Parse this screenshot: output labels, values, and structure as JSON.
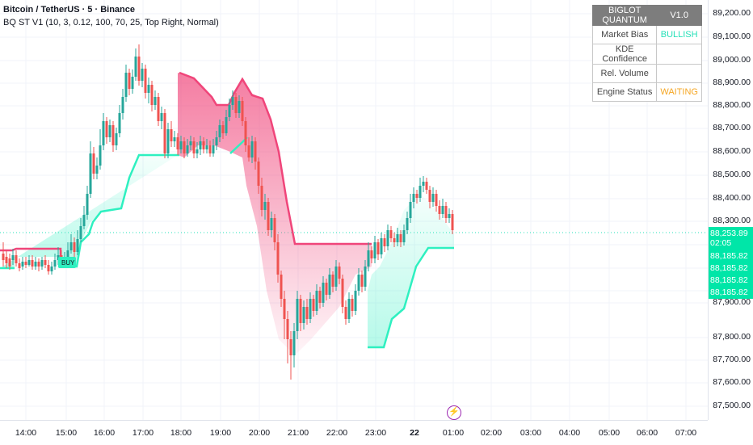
{
  "legend": {
    "symbol_line": "Bitcoin / TetherUS · 5 · Binance",
    "indicator_line": "BQ ST V1 (10, 3, 0.12, 100, 70, 25, Top Right, Normal)"
  },
  "table": {
    "title": "BIGLOT QUANTUM",
    "version": "V1.0",
    "rows": [
      {
        "label": "Market Bias",
        "value": "BULLISH",
        "color": "#26e0b8"
      },
      {
        "label": "KDE Confidence",
        "value": "",
        "color": "#444444"
      },
      {
        "label": "Rel. Volume",
        "value": "",
        "color": "#444444"
      },
      {
        "label": "Engine Status",
        "value": "WAITING",
        "color": "#f5a623"
      }
    ]
  },
  "buy_label": "BUY",
  "price_scale": {
    "ticks": [
      "89,200.00",
      "89,100.00",
      "89,000.00",
      "88,900.00",
      "88,800.00",
      "88,700.00",
      "88,600.00",
      "88,500.00",
      "88,400.00",
      "88,300.00",
      "87,900.00",
      "87,800.00",
      "87,700.00",
      "87,600.00",
      "87,500.00"
    ],
    "tags": [
      {
        "text": "88,253.89",
        "color": "#00e6a8"
      },
      {
        "text": "02:05",
        "color": "#00e6a8"
      },
      {
        "text": "88,185.82",
        "color": "#00e6a8"
      },
      {
        "text": "88,185.82",
        "color": "#00e6a8"
      },
      {
        "text": "88,185.82",
        "color": "#00e6a8"
      },
      {
        "text": "88,185.82",
        "color": "#00e6a8"
      }
    ]
  },
  "time_scale": {
    "ticks": [
      "14:00",
      "15:00",
      "16:00",
      "17:00",
      "18:00",
      "19:00",
      "20:00",
      "21:00",
      "22:00",
      "23:00",
      "22",
      "01:00",
      "02:00",
      "03:00",
      "04:00",
      "05:00",
      "06:00",
      "07:00"
    ],
    "bold_tick": "22"
  },
  "colors": {
    "bull": "#26a69a",
    "bear": "#ef5350",
    "bull_band": "#2ef0c0",
    "bear_band": "#f0457a"
  },
  "chart_data": {
    "type": "candlestick",
    "title": "",
    "xlabel": "",
    "ylabel": "",
    "ylim": [
      87450,
      89250
    ],
    "last_price": 88253.89,
    "supertrend_current": 88185.82
  }
}
